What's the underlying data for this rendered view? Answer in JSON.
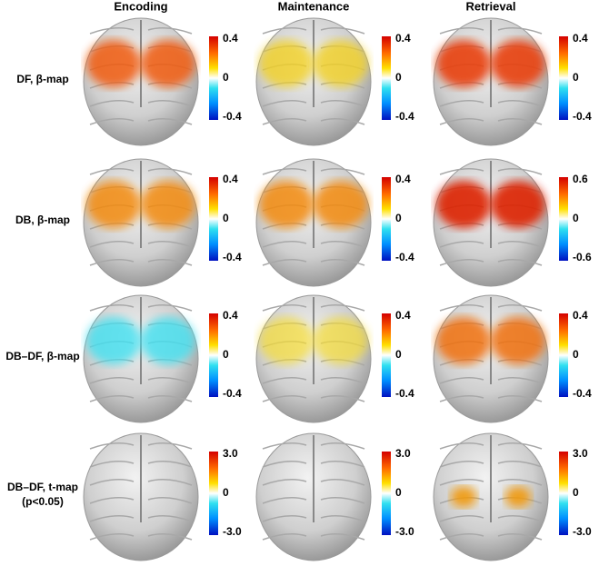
{
  "columns": [
    "Encoding",
    "Maintenance",
    "Retrieval"
  ],
  "rows": [
    {
      "label": [
        "DF, β-map"
      ],
      "scales": [
        [
          "0.4",
          "0",
          "-0.4"
        ],
        [
          "0.4",
          "0",
          "-0.4"
        ],
        [
          "0.4",
          "0",
          "-0.4"
        ]
      ]
    },
    {
      "label": [
        "DB, β-map"
      ],
      "scales": [
        [
          "0.4",
          "0",
          "-0.4"
        ],
        [
          "0.4",
          "0",
          "-0.4"
        ],
        [
          "0.6",
          "0",
          "-0.6"
        ]
      ]
    },
    {
      "label": [
        "DB–DF, β-map"
      ],
      "scales": [
        [
          "0.4",
          "0",
          "-0.4"
        ],
        [
          "0.4",
          "0",
          "-0.4"
        ],
        [
          "0.4",
          "0",
          "-0.4"
        ]
      ]
    },
    {
      "label": [
        "DB–DF, t-map",
        "(p<0.05)"
      ],
      "scales": [
        [
          "3.0",
          "0",
          "-3.0"
        ],
        [
          "3.0",
          "0",
          "-3.0"
        ],
        [
          "3.0",
          "0",
          "-3.0"
        ]
      ]
    }
  ]
}
